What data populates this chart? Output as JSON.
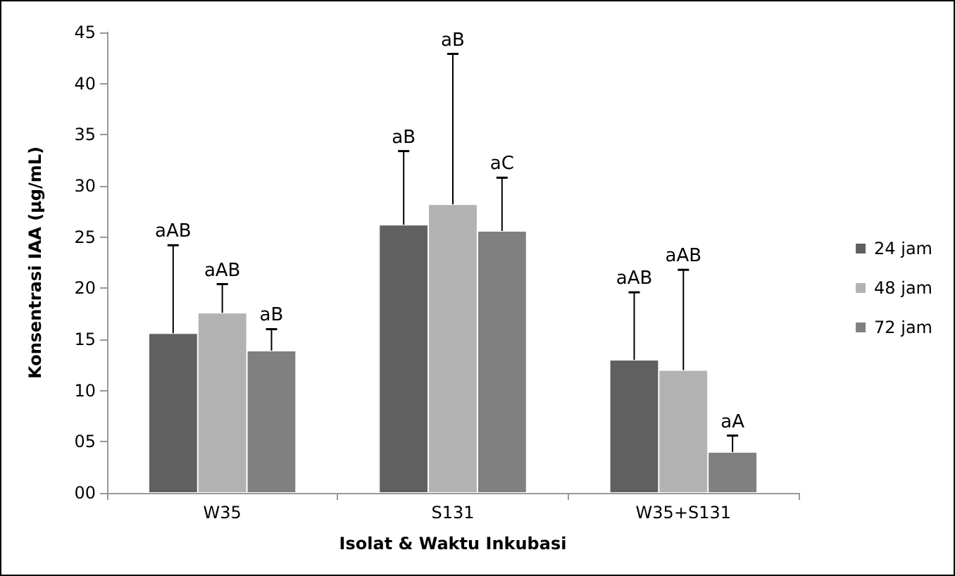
{
  "chart_data": {
    "type": "bar",
    "xlabel": "Isolat & Waktu Inkubasi",
    "ylabel": "Konsentrasi IAA (µg/mL)",
    "categories": [
      "W35",
      "S131",
      "W35+S131"
    ],
    "series": [
      {
        "name": "24 jam",
        "color": "#606060",
        "values": [
          15.6,
          26.2,
          13.0
        ],
        "errors": [
          [
            15.6,
            24.2
          ],
          [
            26.2,
            33.4
          ],
          [
            13.0,
            19.6
          ]
        ]
      },
      {
        "name": "48 jam",
        "color": "#b2b2b2",
        "values": [
          17.6,
          28.2,
          12.0
        ],
        "errors": [
          [
            17.6,
            20.4
          ],
          [
            28.2,
            42.9
          ],
          [
            12.0,
            21.8
          ]
        ]
      },
      {
        "name": "72 jam",
        "color": "#808080",
        "values": [
          13.9,
          25.6,
          4.0
        ],
        "errors": [
          [
            13.9,
            16.0
          ],
          [
            25.6,
            30.8
          ],
          [
            4.0,
            5.6
          ]
        ]
      }
    ],
    "annotations": [
      "aAB",
      "aAB",
      "aB",
      "aB",
      "aB",
      "aC",
      "aAB",
      "aAB",
      "aA"
    ],
    "ylim": [
      0,
      45
    ],
    "yticks": [
      {
        "value": 0,
        "label": "00"
      },
      {
        "value": 5,
        "label": "05"
      },
      10,
      15,
      20,
      25,
      30,
      35,
      40,
      45
    ],
    "grid": false,
    "legend": "right"
  }
}
